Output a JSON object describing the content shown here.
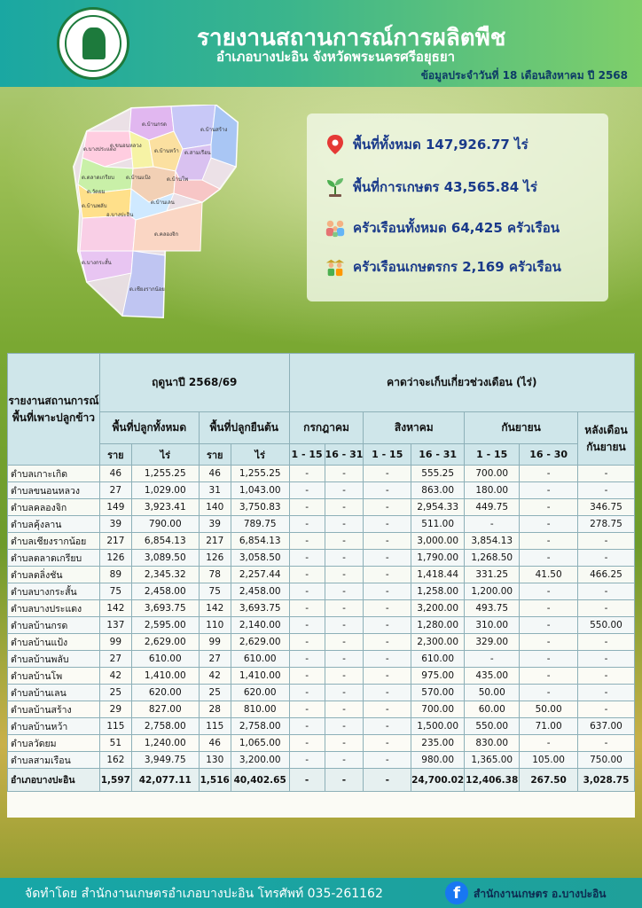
{
  "header": {
    "title": "รายงานสถานการณ์การผลิตพืช",
    "subtitle": "อำเภอบางปะอิน จังหวัดพระนครศรีอยุธยา",
    "date": "ข้อมูลประจำวันที่ 18 เดือนสิงหาคม ปี 2568"
  },
  "map": {
    "labels": [
      "ต.บ้านกรด",
      "ต.ขนอนหลวง",
      "ต.บ้านหว้า",
      "ต.สามเรือน",
      "ต.บ้านสร้าง",
      "ต.บางประแดง",
      "ต.ตลาดเกรียบ",
      "ต.วัดยม",
      "ต.บ้านแป้ง",
      "ต.บ้านเลน",
      "ต.บ้านพลับ",
      "อ.บางปะอิน",
      "ต.คลองจิก",
      "ต.บ้านโพ",
      "ต.บางกระสั้น",
      "ต.เชียงรากน้อย"
    ]
  },
  "stats": [
    {
      "icon": "location-pin-icon",
      "text": "พื้นที่ทั้งหมด 147,926.77 ไร่"
    },
    {
      "icon": "seedling-icon",
      "text": "พื้นที่การเกษตร 43,565.84 ไร่"
    },
    {
      "icon": "family-icon",
      "text": "ครัวเรือนทั้งหมด 64,425 ครัวเรือน"
    },
    {
      "icon": "farmers-icon",
      "text": "ครัวเรือนเกษตรกร 2,169 ครัวเรือน"
    }
  ],
  "table": {
    "head": {
      "report": "รายงานสถานการณ์พื้นที่เพาะปลูกข้าว",
      "season": "ฤดูนาปี 2568/69",
      "forecast": "คาดว่าจะเก็บเกี่ยวช่วงเดือน (ไร่)",
      "planted_total": "พื้นที่ปลูกทั้งหมด",
      "planted_standing": "พื้นที่ปลูกยืนต้น",
      "jul": "กรกฎาคม",
      "aug": "สิงหาคม",
      "sep": "กันยายน",
      "after_sep": "หลังเดือนกันยายน",
      "households": "ราย",
      "rai": "ไร่",
      "p1": "1 - 15",
      "p2": "16 - 31",
      "p3": "1 - 15",
      "p4": "16 - 31",
      "p5": "1 - 15",
      "p6": "16 - 30"
    },
    "rows": [
      [
        "ตำบลเกาะเกิด",
        "46",
        "1,255.25",
        "46",
        "1,255.25",
        "-",
        "-",
        "-",
        "555.25",
        "700.00",
        "-",
        "-"
      ],
      [
        "ตำบลขนอนหลวง",
        "27",
        "1,029.00",
        "31",
        "1,043.00",
        "-",
        "-",
        "-",
        "863.00",
        "180.00",
        "-",
        "-"
      ],
      [
        "ตำบลคลองจิก",
        "149",
        "3,923.41",
        "140",
        "3,750.83",
        "-",
        "-",
        "-",
        "2,954.33",
        "449.75",
        "-",
        "346.75"
      ],
      [
        "ตำบลคุ้งลาน",
        "39",
        "790.00",
        "39",
        "789.75",
        "-",
        "-",
        "-",
        "511.00",
        "-",
        "-",
        "278.75"
      ],
      [
        "ตำบลเชียงรากน้อย",
        "217",
        "6,854.13",
        "217",
        "6,854.13",
        "-",
        "-",
        "-",
        "3,000.00",
        "3,854.13",
        "-",
        "-"
      ],
      [
        "ตำบลตลาดเกรียบ",
        "126",
        "3,089.50",
        "126",
        "3,058.50",
        "-",
        "-",
        "-",
        "1,790.00",
        "1,268.50",
        "-",
        "-"
      ],
      [
        "ตำบลตลิ่งชัน",
        "89",
        "2,345.32",
        "78",
        "2,257.44",
        "-",
        "-",
        "-",
        "1,418.44",
        "331.25",
        "41.50",
        "466.25"
      ],
      [
        "ตำบลบางกระสั้น",
        "75",
        "2,458.00",
        "75",
        "2,458.00",
        "-",
        "-",
        "-",
        "1,258.00",
        "1,200.00",
        "-",
        "-"
      ],
      [
        "ตำบลบางประแดง",
        "142",
        "3,693.75",
        "142",
        "3,693.75",
        "-",
        "-",
        "-",
        "3,200.00",
        "493.75",
        "-",
        "-"
      ],
      [
        "ตำบลบ้านกรด",
        "137",
        "2,595.00",
        "110",
        "2,140.00",
        "-",
        "-",
        "-",
        "1,280.00",
        "310.00",
        "-",
        "550.00"
      ],
      [
        "ตำบลบ้านแป้ง",
        "99",
        "2,629.00",
        "99",
        "2,629.00",
        "-",
        "-",
        "-",
        "2,300.00",
        "329.00",
        "-",
        "-"
      ],
      [
        "ตำบลบ้านพลับ",
        "27",
        "610.00",
        "27",
        "610.00",
        "-",
        "-",
        "-",
        "610.00",
        "-",
        "-",
        "-"
      ],
      [
        "ตำบลบ้านโพ",
        "42",
        "1,410.00",
        "42",
        "1,410.00",
        "-",
        "-",
        "-",
        "975.00",
        "435.00",
        "-",
        "-"
      ],
      [
        "ตำบลบ้านเลน",
        "25",
        "620.00",
        "25",
        "620.00",
        "-",
        "-",
        "-",
        "570.00",
        "50.00",
        "-",
        "-"
      ],
      [
        "ตำบลบ้านสร้าง",
        "29",
        "827.00",
        "28",
        "810.00",
        "-",
        "-",
        "-",
        "700.00",
        "60.00",
        "50.00",
        "-"
      ],
      [
        "ตำบลบ้านหว้า",
        "115",
        "2,758.00",
        "115",
        "2,758.00",
        "-",
        "-",
        "-",
        "1,500.00",
        "550.00",
        "71.00",
        "637.00"
      ],
      [
        "ตำบลวัดยม",
        "51",
        "1,240.00",
        "46",
        "1,065.00",
        "-",
        "-",
        "-",
        "235.00",
        "830.00",
        "-",
        "-"
      ],
      [
        "ตำบลสามเรือน",
        "162",
        "3,949.75",
        "130",
        "3,200.00",
        "-",
        "-",
        "-",
        "980.00",
        "1,365.00",
        "105.00",
        "750.00"
      ]
    ],
    "total": [
      "อำเภอบางปะอิน",
      "1,597",
      "42,077.11",
      "1,516",
      "40,402.65",
      "-",
      "-",
      "-",
      "24,700.02",
      "12,406.38",
      "267.50",
      "3,028.75"
    ]
  },
  "footer": {
    "left": "จัดทำโดย สำนักงานเกษตรอำเภอบางปะอิน โทรศัพท์ 035-261162",
    "page": "สำนักงานเกษตร อ.บางปะอิน"
  }
}
